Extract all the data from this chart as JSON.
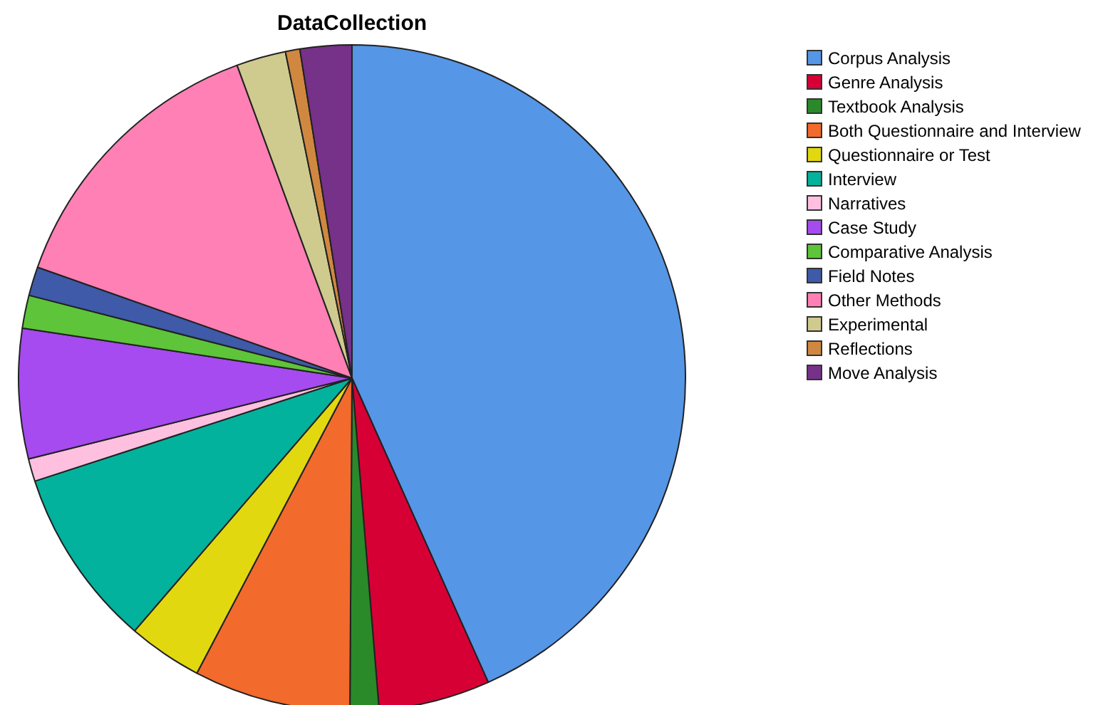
{
  "chart_data": {
    "type": "pie",
    "title": "DataCollection",
    "legend": "right",
    "categories": [
      "Corpus Analysis",
      "Genre Analysis",
      "Textbook Analysis",
      "Both Questionnaire and Interview",
      "Questionnaire or Test",
      "Interview",
      "Narratives",
      "Case Study",
      "Comparative Analysis",
      "Field Notes",
      "Other Methods",
      "Experimental",
      "Reflections",
      "Move Analysis"
    ],
    "values": [
      43.3,
      5.4,
      1.4,
      7.6,
      3.6,
      8.7,
      1.1,
      6.3,
      1.6,
      1.4,
      14,
      2.4,
      0.7,
      2.5
    ],
    "colors": [
      "#5596e6",
      "#d70035",
      "#2a8a2a",
      "#f26a2c",
      "#e2d810",
      "#03b29d",
      "#ffc0e0",
      "#a64bef",
      "#5ec43a",
      "#3e5aa8",
      "#ff80b4",
      "#cfcb8f",
      "#d08840",
      "#763189"
    ]
  }
}
